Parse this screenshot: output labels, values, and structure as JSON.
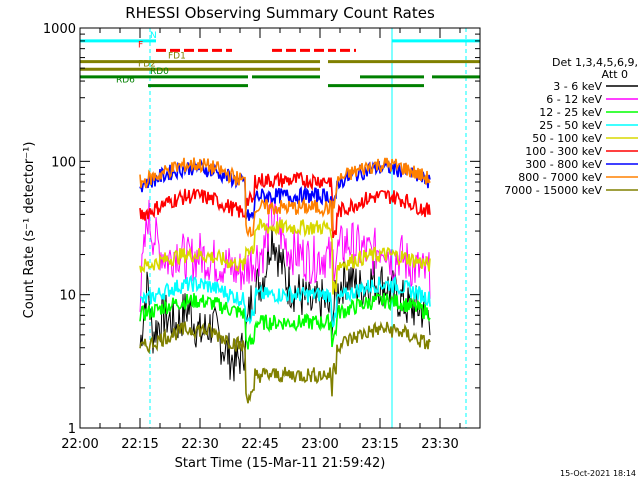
{
  "chart_data": {
    "type": "line",
    "title": "RHESSI Observing Summary Count Rates",
    "xlabel": "Start Time (15-Mar-11 21:59:42)",
    "ylabel": "Count Rate (s⁻¹ detector⁻¹)",
    "yscale": "log",
    "ylim": [
      1,
      1000
    ],
    "xlim_minutes": [
      0,
      100
    ],
    "x_ticks": [
      {
        "m": 0,
        "label": "22:00"
      },
      {
        "m": 15,
        "label": "22:15"
      },
      {
        "m": 30,
        "label": "22:30"
      },
      {
        "m": 45,
        "label": "22:45"
      },
      {
        "m": 60,
        "label": "23:00"
      },
      {
        "m": 75,
        "label": "23:15"
      },
      {
        "m": 90,
        "label": "23:30"
      }
    ],
    "y_ticks": [
      {
        "v": 1,
        "label": "1"
      },
      {
        "v": 10,
        "label": "10"
      },
      {
        "v": 100,
        "label": "100"
      },
      {
        "v": 1000,
        "label": "1000"
      }
    ],
    "legend_header": [
      "Det 1,3,4,5,6,9,",
      "Att 0"
    ],
    "legend_position": "right",
    "footer_date": "15-Oct-2021 18:14",
    "vlines": [
      {
        "m": 0,
        "color": "#00ffff",
        "style": "solid"
      },
      {
        "m": 17.5,
        "color": "#00ffff",
        "style": "dashed"
      },
      {
        "m": 78,
        "color": "#00ffff",
        "style": "solid"
      },
      {
        "m": 96.5,
        "color": "#00ffff",
        "style": "dashed"
      }
    ],
    "flag_bars": [
      {
        "label": "N",
        "color": "#00ffff",
        "level": 800,
        "segments": [
          [
            0,
            19
          ],
          [
            78,
            100
          ]
        ]
      },
      {
        "label": "F",
        "color": "#ff0000",
        "level": 680,
        "dashed": true,
        "segments": [
          [
            19,
            38
          ],
          [
            48,
            55
          ],
          [
            55,
            64
          ],
          [
            65,
            69
          ]
        ]
      },
      {
        "label": "FD1",
        "color": "#808000",
        "level": 560,
        "segments": [
          [
            0,
            60
          ],
          [
            62,
            100
          ]
        ]
      },
      {
        "label": "FD2",
        "color": "#808000",
        "level": 490,
        "segments": [
          [
            0,
            60
          ]
        ]
      },
      {
        "label": "RD0",
        "color": "#008000",
        "level": 430,
        "segments": [
          [
            0,
            42
          ],
          [
            43,
            60
          ],
          [
            70,
            86
          ],
          [
            88,
            100
          ]
        ]
      },
      {
        "label": "RD6",
        "color": "#008000",
        "level": 370,
        "segments": [
          [
            17,
            42
          ],
          [
            62,
            86
          ]
        ]
      }
    ],
    "data_window": [
      15,
      87.5
    ],
    "night_gaps": [
      [
        41.5,
        43.5
      ],
      [
        63,
        64
      ]
    ],
    "series": [
      {
        "name": "3 - 6 keV",
        "color": "#000000",
        "kind": "flare",
        "anchors": [
          [
            15,
            4
          ],
          [
            16,
            8
          ],
          [
            17,
            12
          ],
          [
            18,
            5
          ],
          [
            21,
            7
          ],
          [
            24,
            6
          ],
          [
            27,
            8
          ],
          [
            30,
            5
          ],
          [
            33,
            6
          ],
          [
            36,
            4
          ],
          [
            39,
            3
          ],
          [
            41,
            4
          ],
          [
            43,
            10
          ],
          [
            46,
            14
          ],
          [
            48,
            30
          ],
          [
            50,
            18
          ],
          [
            52,
            12
          ],
          [
            55,
            10
          ],
          [
            58,
            8
          ],
          [
            61,
            9
          ],
          [
            63,
            7
          ],
          [
            65,
            12
          ],
          [
            67,
            14
          ],
          [
            70,
            11
          ],
          [
            73,
            13
          ],
          [
            76,
            12
          ],
          [
            79,
            10
          ],
          [
            82,
            8
          ],
          [
            85,
            8
          ],
          [
            87,
            7
          ]
        ]
      },
      {
        "name": "6 - 12 keV",
        "color": "#ff00ff",
        "kind": "flare",
        "anchors": [
          [
            15,
            10
          ],
          [
            16,
            20
          ],
          [
            17,
            40
          ],
          [
            18,
            30
          ],
          [
            20,
            22
          ],
          [
            22,
            18
          ],
          [
            24,
            22
          ],
          [
            27,
            18
          ],
          [
            30,
            20
          ],
          [
            33,
            18
          ],
          [
            36,
            17
          ],
          [
            39,
            15
          ],
          [
            41,
            15
          ],
          [
            43,
            18
          ],
          [
            46,
            22
          ],
          [
            48,
            40
          ],
          [
            50,
            30
          ],
          [
            52,
            22
          ],
          [
            55,
            20
          ],
          [
            58,
            18
          ],
          [
            61,
            20
          ],
          [
            63,
            18
          ],
          [
            65,
            22
          ],
          [
            67,
            25
          ],
          [
            70,
            22
          ],
          [
            73,
            20
          ],
          [
            76,
            25
          ],
          [
            78,
            18
          ],
          [
            80,
            20
          ],
          [
            82,
            17
          ],
          [
            85,
            15
          ],
          [
            87,
            14
          ]
        ]
      },
      {
        "name": "12 - 25 keV",
        "color": "#00ff00",
        "kind": "orbit",
        "base": 6.5,
        "peak": 9,
        "dip": 6.2
      },
      {
        "name": "25 - 50 keV",
        "color": "#00ffff",
        "kind": "orbit",
        "base": 8,
        "peak": 12,
        "dip": 10
      },
      {
        "name": "50 - 100 keV",
        "color": "#d8d800",
        "kind": "orbit",
        "base": 15,
        "peak": 20,
        "dip": 32
      },
      {
        "name": "100 - 300 keV",
        "color": "#ff0000",
        "kind": "orbit",
        "base": 35,
        "peak": 55,
        "dip": 72
      },
      {
        "name": "300 - 800 keV",
        "color": "#0000ff",
        "kind": "orbit",
        "base": 60,
        "peak": 90,
        "dip": 55
      },
      {
        "name": "800 - 7000 keV",
        "color": "#ff8000",
        "kind": "orbit",
        "base": 62,
        "peak": 95,
        "dip": 45
      },
      {
        "name": "7000 - 15000 keV",
        "color": "#808000",
        "kind": "orbit",
        "base": 3.5,
        "peak": 5.5,
        "dip": 2.5
      }
    ]
  }
}
